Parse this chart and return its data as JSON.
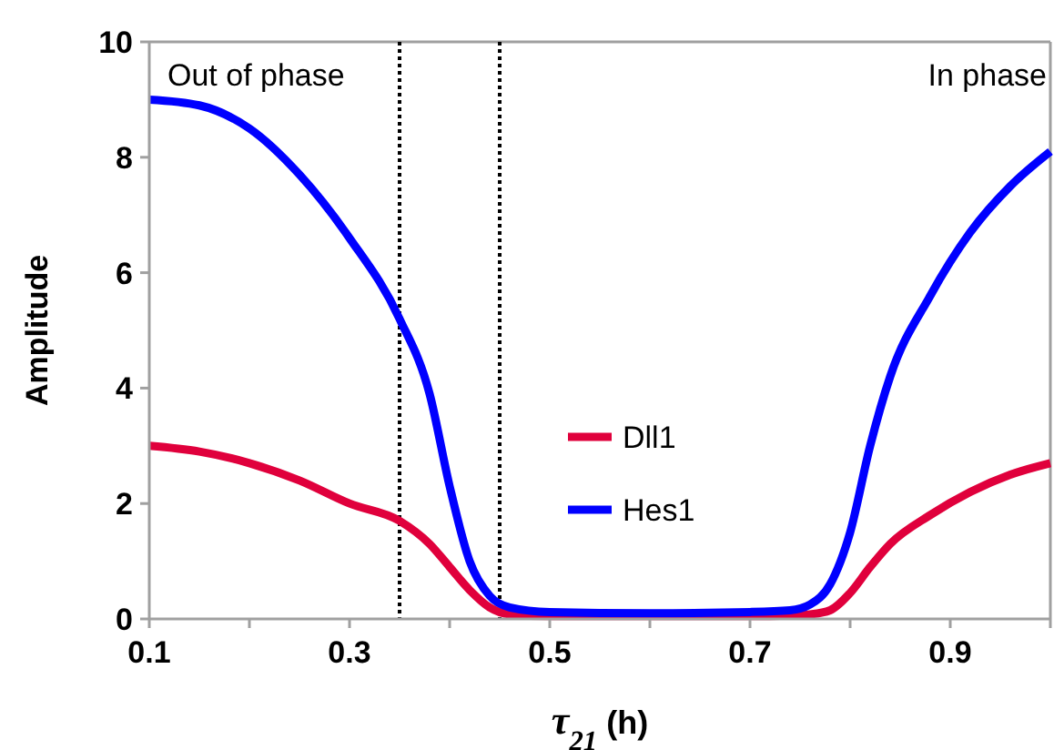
{
  "chart_data": {
    "type": "line",
    "xlabel": "τ$_{21}$ (h)",
    "ylabel": "Amplitude",
    "xlim": [
      0.1,
      1.0
    ],
    "ylim": [
      0,
      10
    ],
    "xticks": [
      0.1,
      {
        "value": 0.2,
        "label": null
      },
      0.3,
      {
        "value": 0.4,
        "label": null
      },
      0.5,
      {
        "value": 0.6,
        "label": null
      },
      0.7,
      {
        "value": 0.8,
        "label": null
      },
      0.9,
      {
        "value": 1.0,
        "label": null
      }
    ],
    "yticks": [
      0,
      2,
      4,
      6,
      8,
      10
    ],
    "x": [
      0.1,
      0.15,
      0.2,
      0.25,
      0.3,
      0.35,
      0.38,
      0.4,
      0.42,
      0.44,
      0.46,
      0.5,
      0.6,
      0.7,
      0.74,
      0.76,
      0.78,
      0.8,
      0.82,
      0.84,
      0.88,
      0.92,
      0.96,
      1.0
    ],
    "series": [
      {
        "name": "Dll1",
        "color": "#e0003c",
        "values": [
          3.0,
          2.9,
          2.7,
          2.4,
          2.0,
          1.7,
          1.3,
          0.9,
          0.5,
          0.2,
          0.08,
          0.05,
          0.05,
          0.05,
          0.06,
          0.08,
          0.15,
          0.45,
          0.9,
          1.3,
          1.8,
          2.2,
          2.5,
          2.7
        ]
      },
      {
        "name": "Hes1",
        "color": "#0000ff",
        "values": [
          9.0,
          8.9,
          8.5,
          7.7,
          6.6,
          5.2,
          3.9,
          2.3,
          1.0,
          0.4,
          0.2,
          0.12,
          0.1,
          0.12,
          0.15,
          0.25,
          0.6,
          1.5,
          3.0,
          4.2,
          5.6,
          6.7,
          7.5,
          8.1
        ]
      }
    ],
    "ref_lines": [
      {
        "axis": "x",
        "value": 0.35,
        "line_style": "dotted",
        "color": "#000000"
      },
      {
        "axis": "x",
        "value": 0.45,
        "line_style": "dotted",
        "color": "#000000"
      }
    ],
    "annotations": [
      "Out of phase",
      "In phase"
    ],
    "legend": "center",
    "grid": false
  }
}
